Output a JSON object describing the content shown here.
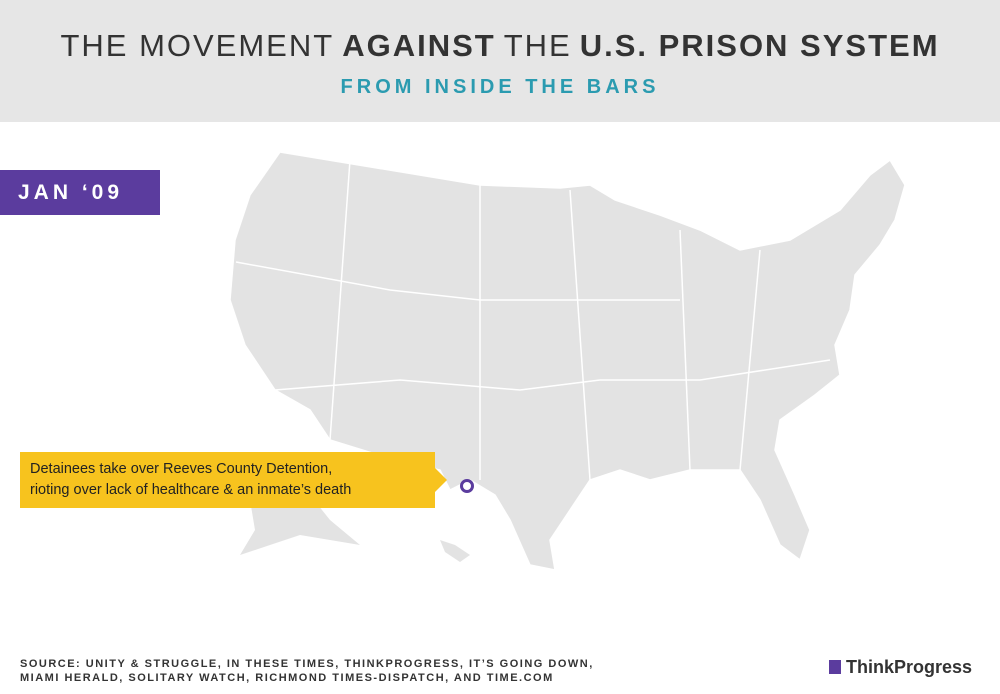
{
  "header": {
    "title_parts": [
      "THE MOVEMENT",
      "AGAINST",
      "THE",
      "U.S. PRISON SYSTEM"
    ],
    "subtitle": "FROM INSIDE THE BARS"
  },
  "date_label": "JAN ‘09",
  "callout": {
    "lines": [
      "Detainees take over Reeves County Detention,",
      "rioting over lack of healthcare & an inmate’s death"
    ]
  },
  "source": {
    "lines": [
      "SOURCE: UNITY & STRUGGLE, IN THESE TIMES, THINKPROGRESS, IT’S GOING DOWN,",
      "MIAMI HERALD, SOLITARY WATCH, RICHMOND TIMES-DISPATCH, AND TIME.COM"
    ]
  },
  "logo": "ThinkProgress"
}
